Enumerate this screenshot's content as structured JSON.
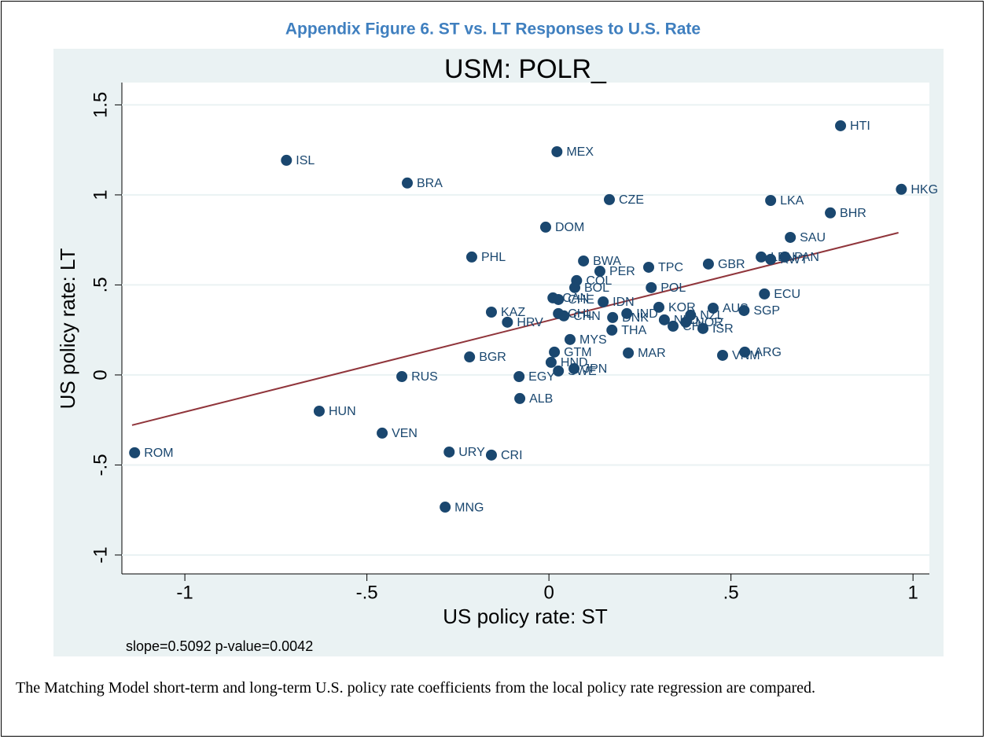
{
  "figure_title": "Appendix Figure 6. ST vs. LT Responses to U.S. Rate",
  "caption": "The Matching Model short-term and long-term U.S. policy rate coefficients from the local policy rate regression are compared.",
  "chart_data": {
    "type": "scatter",
    "title": "USM: POLR_",
    "xlabel": "US policy rate: ST",
    "ylabel": "US policy rate: LT",
    "note": "slope=0.5092 p-value=0.0042",
    "color": "#1a476f",
    "grid": true,
    "xlim": [
      -1.173,
      1.045
    ],
    "ylim": [
      -1.105,
      1.624
    ],
    "xticks": [
      -1,
      {
        "value": -0.5,
        "label": "-.5"
      },
      0,
      {
        "value": 0.5,
        "label": ".5"
      },
      1
    ],
    "yticks": [
      -1,
      {
        "value": -0.5,
        "label": "-.5"
      },
      0,
      {
        "value": 0.5,
        "label": ".5"
      },
      1,
      1.5
    ],
    "labels": [
      "HTI",
      "MEX",
      "ISL",
      "BRA",
      "HKG",
      "CZE",
      "LKA",
      "BHR",
      "DOM",
      "SAU",
      "PHL",
      "LBN",
      "KWT",
      "PAN",
      "BWA",
      "GBR",
      "TPC",
      "PER",
      "COL",
      "BOL",
      "POL",
      "ECU",
      "CAN",
      "CHE",
      "IDN",
      "KOR",
      "IND",
      "AUS",
      "SGP",
      "KAZ",
      "CHL",
      "CHN",
      "NZL",
      "DNK",
      "NLD",
      "NOR",
      "CHL",
      "ISR",
      "HRV",
      "THA",
      "MYS",
      "GTM",
      "MAR",
      "ARG",
      "VNM",
      "BGR",
      "HND",
      "SWE",
      "JPN",
      "EGY",
      "RUS",
      "ALB",
      "HUN",
      "VEN",
      "URY",
      "CRI",
      "ROM",
      "MNG"
    ],
    "x": [
      0.801,
      0.022,
      -0.721,
      -0.389,
      0.968,
      0.166,
      0.609,
      0.773,
      -0.009,
      0.663,
      -0.212,
      0.583,
      0.609,
      0.648,
      0.095,
      0.438,
      0.274,
      0.14,
      0.076,
      0.071,
      0.281,
      0.592,
      0.011,
      0.026,
      0.149,
      0.302,
      0.214,
      0.451,
      0.536,
      -0.158,
      0.026,
      0.041,
      0.389,
      0.175,
      0.317,
      0.376,
      0.341,
      0.423,
      -0.114,
      0.173,
      0.058,
      0.015,
      0.218,
      0.538,
      0.477,
      -0.218,
      0.006,
      0.026,
      0.069,
      -0.082,
      -0.404,
      -0.08,
      -0.631,
      -0.458,
      -0.274,
      -0.158,
      -1.138,
      -0.285
    ],
    "y": [
      1.384,
      1.24,
      1.192,
      1.066,
      1.031,
      0.974,
      0.969,
      0.9,
      0.821,
      0.764,
      0.655,
      0.655,
      0.642,
      0.655,
      0.633,
      0.616,
      0.598,
      0.576,
      0.524,
      0.485,
      0.485,
      0.45,
      0.428,
      0.419,
      0.406,
      0.376,
      0.341,
      0.371,
      0.358,
      0.349,
      0.341,
      0.328,
      0.332,
      0.319,
      0.306,
      0.293,
      0.271,
      0.258,
      0.293,
      0.249,
      0.197,
      0.127,
      0.122,
      0.127,
      0.109,
      0.1,
      0.07,
      0.022,
      0.035,
      -0.009,
      -0.009,
      -0.131,
      -0.201,
      -0.323,
      -0.428,
      -0.445,
      -0.432,
      -0.734
    ],
    "fit_line": {
      "color": "#90353b",
      "x": [
        -1.145,
        0.96
      ],
      "y": [
        -0.279,
        0.79
      ]
    }
  }
}
